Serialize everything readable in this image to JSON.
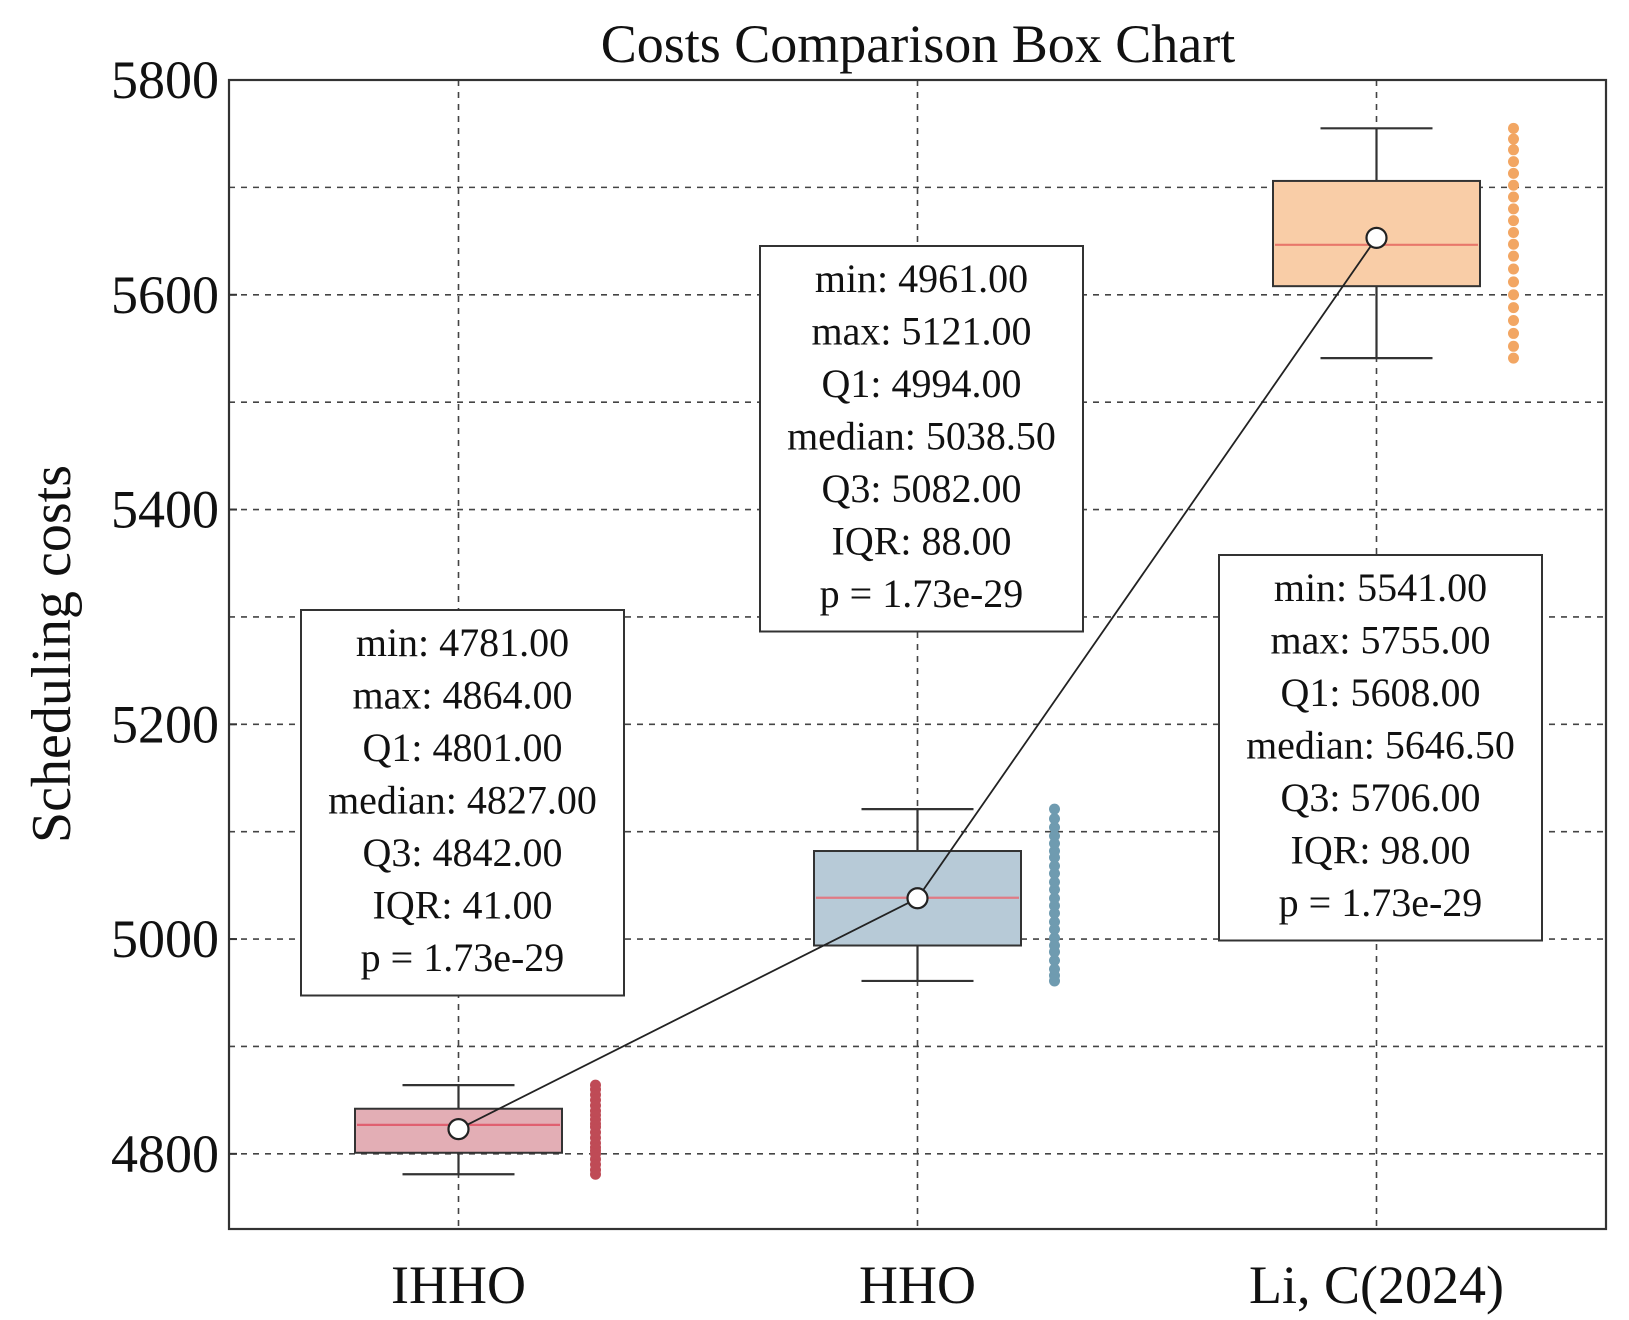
{
  "chart_data": {
    "type": "box",
    "title": "Costs Comparison Box Chart",
    "xlabel": "",
    "ylabel": "Scheduling costs",
    "ylim": [
      4730,
      5800
    ],
    "yticks": [
      4800,
      5000,
      5200,
      5400,
      5600,
      5800
    ],
    "grid_y": [
      4800,
      4900,
      5000,
      5100,
      5200,
      5300,
      5400,
      5500,
      5600,
      5700,
      5800
    ],
    "grid": true,
    "categories": [
      "IHHO",
      "HHO",
      "Li, C(2024)"
    ],
    "series": [
      {
        "name": "IHHO",
        "min": 4781,
        "q1": 4801,
        "median": 4827,
        "q3": 4842,
        "max": 4864,
        "mean": 4823,
        "fill": "#e3aeb5",
        "median_color": "#e06070",
        "point_color": "#bf4b56",
        "points": [
          4781,
          4785,
          4790,
          4795,
          4800,
          4803,
          4806,
          4810,
          4815,
          4820,
          4825,
          4828,
          4832,
          4836,
          4840,
          4845,
          4850,
          4855,
          4860,
          4864
        ],
        "stats_lines": [
          "min: 4781.00",
          "max: 4864.00",
          "Q1: 4801.00",
          "median: 4827.00",
          "Q3: 4842.00",
          "IQR: 41.00",
          "p = 1.73e-29"
        ]
      },
      {
        "name": "HHO",
        "min": 4961,
        "q1": 4994,
        "median": 5038.5,
        "q3": 5082,
        "max": 5121,
        "mean": 5038,
        "fill": "#b7cad7",
        "median_color": "#e07a84",
        "point_color": "#6f9bb0",
        "points": [
          4961,
          4966,
          4972,
          4980,
          4988,
          4994,
          5001,
          5009,
          5016,
          5024,
          5031,
          5038,
          5046,
          5053,
          5061,
          5068,
          5076,
          5082,
          5089,
          5096,
          5104,
          5112,
          5121
        ],
        "stats_lines": [
          "min: 4961.00",
          "max: 5121.00",
          "Q1: 4994.00",
          "median: 5038.50",
          "Q3: 5082.00",
          "IQR: 88.00",
          "p = 1.73e-29"
        ]
      },
      {
        "name": "Li, C(2024)",
        "min": 5541,
        "q1": 5608,
        "median": 5646.5,
        "q3": 5706,
        "max": 5755,
        "mean": 5653,
        "fill": "#f9cda7",
        "median_color": "#e8776a",
        "point_color": "#f2a663",
        "points": [
          5541,
          5552,
          5564,
          5576,
          5588,
          5600,
          5612,
          5624,
          5636,
          5647,
          5658,
          5669,
          5680,
          5691,
          5702,
          5713,
          5724,
          5735,
          5745,
          5755
        ],
        "stats_lines": [
          "min: 5541.00",
          "max: 5755.00",
          "Q1: 5608.00",
          "median: 5646.50",
          "Q3: 5706.00",
          "IQR: 98.00",
          "p = 1.73e-29"
        ]
      }
    ]
  }
}
